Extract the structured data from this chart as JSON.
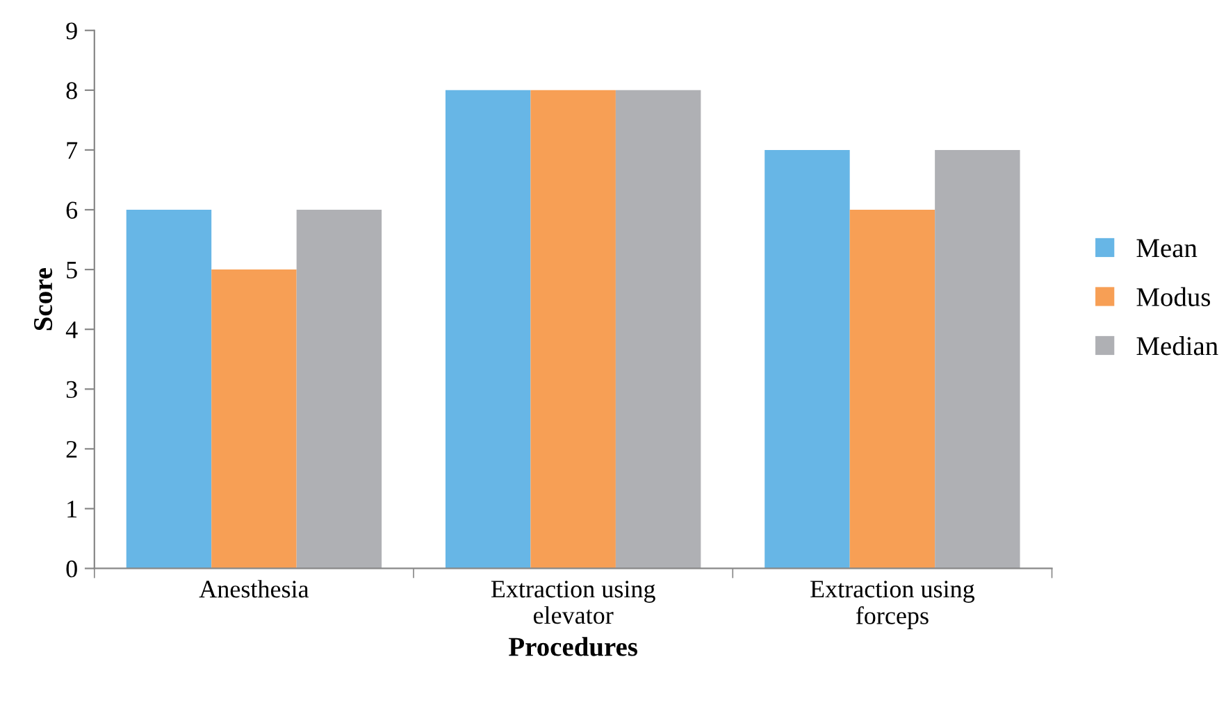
{
  "chart_data": {
    "type": "bar",
    "xlabel": "Procedures",
    "ylabel": "Score",
    "categories": [
      "Anesthesia",
      "Extraction using\nelevator",
      "Extraction using\nforceps"
    ],
    "series": [
      {
        "name": "Mean",
        "color": "#67b6e6",
        "values": [
          6,
          8,
          7
        ]
      },
      {
        "name": "Modus",
        "color": "#f79f55",
        "values": [
          5,
          8,
          6
        ]
      },
      {
        "name": "Median",
        "color": "#afb0b4",
        "values": [
          6,
          8,
          7
        ]
      }
    ],
    "ylim": [
      0,
      9
    ],
    "yticks": [
      0,
      1,
      2,
      3,
      4,
      5,
      6,
      7,
      8,
      9
    ],
    "legend": "right"
  }
}
